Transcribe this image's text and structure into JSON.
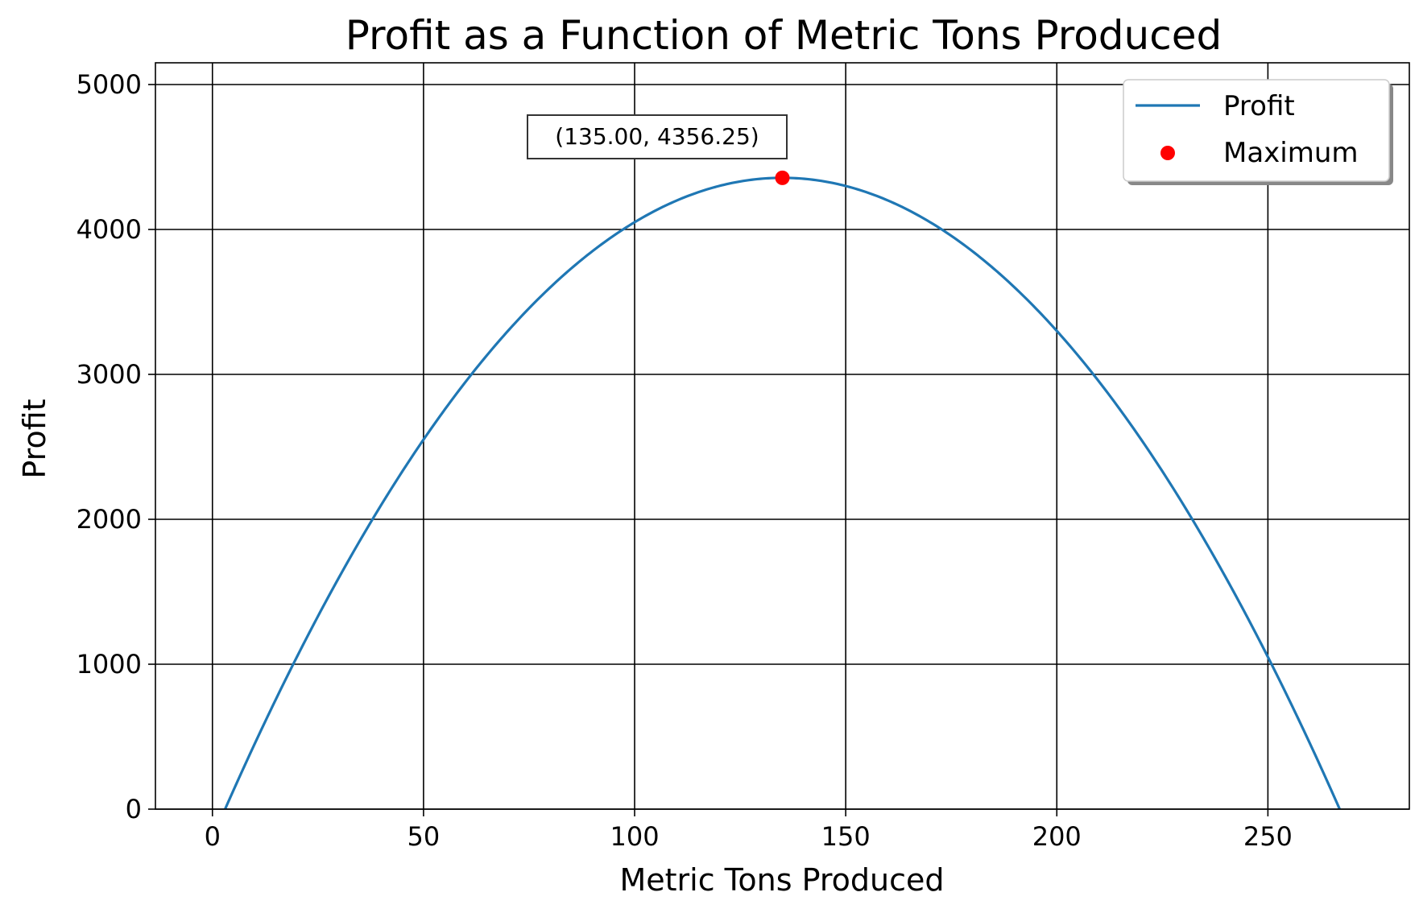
{
  "chart_data": {
    "type": "line",
    "title": "Profit as a Function of Metric Tons Produced",
    "xlabel": "Metric Tons Produced",
    "ylabel": "Profit",
    "xlim": [
      -13.5,
      283.5
    ],
    "ylim": [
      0,
      5150
    ],
    "x_ticks": [
      0,
      50,
      100,
      150,
      200,
      250
    ],
    "y_ticks": [
      0,
      1000,
      2000,
      3000,
      4000,
      5000
    ],
    "grid": true,
    "legend_position": "top-right",
    "series": [
      {
        "name": "Profit",
        "kind": "line",
        "color": "#1f77b4",
        "equation": "y = 4356.25 - 0.25 * (x - 135)^2",
        "x_range": [
          3,
          267
        ]
      },
      {
        "name": "Maximum",
        "kind": "scatter",
        "color": "#ff0000",
        "points": [
          [
            135,
            4356.25
          ]
        ]
      }
    ],
    "annotation": {
      "text": "(135.00, 4356.25)",
      "x": 135,
      "y": 4356.25
    }
  }
}
